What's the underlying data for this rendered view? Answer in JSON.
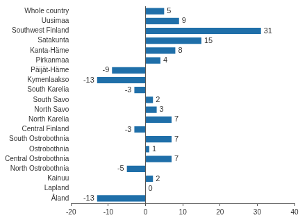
{
  "chart_data": {
    "type": "bar",
    "orientation": "horizontal",
    "categories": [
      "Whole country",
      "Uusimaa",
      "Southwest Finland",
      "Satakunta",
      "Kanta-Häme",
      "Pirkanmaa",
      "Päijät-Häme",
      "Kymenlaakso",
      "South Karelia",
      "South Savo",
      "North Savo",
      "North Karelia",
      "Central Finland",
      "South Ostrobothnia",
      "Ostrobothnia",
      "Central Ostrobothnia",
      "North Ostrobothnia",
      "Kainuu",
      "Lapland",
      "Åland"
    ],
    "values": [
      5,
      9,
      31,
      15,
      8,
      4,
      -9,
      -13,
      -3,
      2,
      3,
      7,
      -3,
      7,
      1,
      7,
      -5,
      2,
      0,
      -13
    ],
    "color": "#1f6fa9",
    "xlim": [
      -20,
      40
    ],
    "xticks": [
      -20,
      -10,
      0,
      10,
      20,
      30,
      40
    ],
    "grid": false,
    "data_labels": true
  }
}
